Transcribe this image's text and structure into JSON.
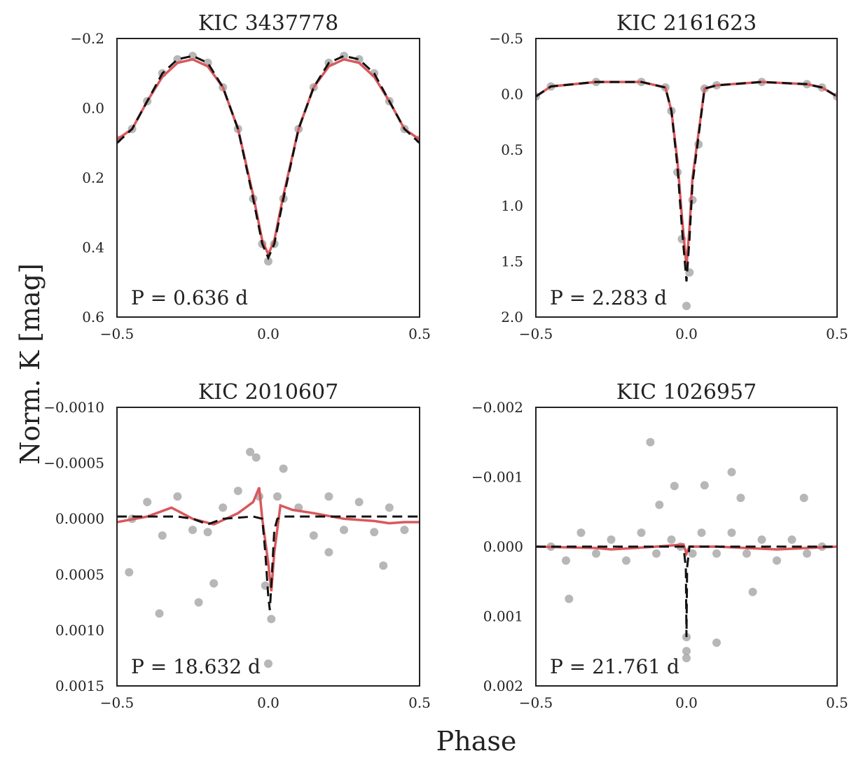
{
  "figure": {
    "xlabel": "Phase",
    "ylabel": "Norm. K [mag]"
  },
  "colors": {
    "points": "#a5a5a5",
    "fit": "#d9585c",
    "model": "#111111",
    "axes": "#222222"
  },
  "chart_data": [
    {
      "type": "line",
      "title": "KIC 3437778",
      "annotation": "P = 0.636 d",
      "xlim": [
        -0.5,
        0.5
      ],
      "ylim": [
        0.6,
        -0.2
      ],
      "xticks": [
        -0.5,
        0.0,
        0.5
      ],
      "xtick_labels": [
        "−0.5",
        "0.0",
        "0.5"
      ],
      "yticks": [
        -0.2,
        0.0,
        0.2,
        0.4,
        0.6
      ],
      "ytick_labels": [
        "−0.2",
        "0.0",
        "0.2",
        "0.4",
        "0.6"
      ],
      "series": [
        {
          "name": "data",
          "style": "scatter",
          "x": [
            -0.5,
            -0.45,
            -0.4,
            -0.35,
            -0.3,
            -0.25,
            -0.2,
            -0.15,
            -0.1,
            -0.05,
            -0.02,
            0.0,
            0.02,
            0.05,
            0.1,
            0.15,
            0.2,
            0.25,
            0.3,
            0.35,
            0.4,
            0.45,
            0.5
          ],
          "y": [
            0.09,
            0.06,
            -0.02,
            -0.1,
            -0.14,
            -0.15,
            -0.13,
            -0.06,
            0.06,
            0.26,
            0.39,
            0.44,
            0.39,
            0.26,
            0.06,
            -0.06,
            -0.13,
            -0.15,
            -0.14,
            -0.1,
            -0.02,
            0.06,
            0.09
          ]
        },
        {
          "name": "fit",
          "style": "line",
          "x": [
            -0.5,
            -0.45,
            -0.4,
            -0.35,
            -0.3,
            -0.25,
            -0.2,
            -0.15,
            -0.1,
            -0.05,
            -0.02,
            0.0,
            0.02,
            0.05,
            0.1,
            0.15,
            0.2,
            0.25,
            0.3,
            0.35,
            0.4,
            0.45,
            0.5
          ],
          "y": [
            0.09,
            0.06,
            -0.02,
            -0.09,
            -0.13,
            -0.14,
            -0.12,
            -0.06,
            0.06,
            0.25,
            0.38,
            0.42,
            0.38,
            0.25,
            0.06,
            -0.06,
            -0.12,
            -0.14,
            -0.13,
            -0.09,
            -0.02,
            0.06,
            0.09
          ]
        },
        {
          "name": "model",
          "style": "dashed",
          "x": [
            -0.5,
            -0.45,
            -0.4,
            -0.35,
            -0.3,
            -0.25,
            -0.2,
            -0.15,
            -0.1,
            -0.05,
            -0.02,
            0.0,
            0.02,
            0.05,
            0.1,
            0.15,
            0.2,
            0.25,
            0.3,
            0.35,
            0.4,
            0.45,
            0.5
          ],
          "y": [
            0.1,
            0.06,
            -0.02,
            -0.1,
            -0.14,
            -0.15,
            -0.13,
            -0.06,
            0.06,
            0.26,
            0.39,
            0.43,
            0.39,
            0.26,
            0.06,
            -0.06,
            -0.13,
            -0.15,
            -0.14,
            -0.1,
            -0.02,
            0.06,
            0.1
          ]
        }
      ]
    },
    {
      "type": "line",
      "title": "KIC 2161623",
      "annotation": "P = 2.283 d",
      "xlim": [
        -0.5,
        0.5
      ],
      "ylim": [
        2.0,
        -0.5
      ],
      "xticks": [
        -0.5,
        0.0,
        0.5
      ],
      "xtick_labels": [
        "−0.5",
        "0.0",
        "0.5"
      ],
      "yticks": [
        -0.5,
        0.0,
        0.5,
        1.0,
        1.5,
        2.0
      ],
      "ytick_labels": [
        "−0.5",
        "0.0",
        "0.5",
        "1.0",
        "1.5",
        "2.0"
      ],
      "series": [
        {
          "name": "data",
          "style": "scatter",
          "x": [
            -0.5,
            -0.45,
            -0.3,
            -0.15,
            -0.07,
            -0.05,
            -0.03,
            -0.015,
            0.0,
            0.01,
            0.02,
            0.04,
            0.06,
            0.1,
            0.25,
            0.4,
            0.45,
            0.5
          ],
          "y": [
            0.02,
            -0.07,
            -0.11,
            -0.11,
            -0.06,
            0.15,
            0.7,
            1.3,
            1.9,
            1.6,
            0.95,
            0.45,
            -0.05,
            -0.08,
            -0.11,
            -0.09,
            -0.06,
            0.02
          ]
        },
        {
          "name": "fit",
          "style": "line",
          "x": [
            -0.5,
            -0.45,
            -0.3,
            -0.15,
            -0.07,
            -0.05,
            -0.03,
            -0.015,
            0.0,
            0.01,
            0.02,
            0.04,
            0.06,
            0.1,
            0.25,
            0.4,
            0.45,
            0.5
          ],
          "y": [
            0.02,
            -0.07,
            -0.11,
            -0.11,
            -0.06,
            0.15,
            0.6,
            1.1,
            1.55,
            1.2,
            0.75,
            0.35,
            -0.05,
            -0.08,
            -0.11,
            -0.09,
            -0.06,
            0.02
          ]
        },
        {
          "name": "model",
          "style": "dashed",
          "x": [
            -0.5,
            -0.45,
            -0.3,
            -0.15,
            -0.07,
            -0.05,
            -0.03,
            -0.015,
            0.0,
            0.01,
            0.02,
            0.04,
            0.06,
            0.1,
            0.25,
            0.4,
            0.45,
            0.5
          ],
          "y": [
            0.02,
            -0.07,
            -0.11,
            -0.11,
            -0.06,
            0.15,
            0.65,
            1.2,
            1.68,
            1.3,
            0.8,
            0.38,
            -0.05,
            -0.08,
            -0.11,
            -0.09,
            -0.06,
            0.02
          ]
        }
      ]
    },
    {
      "type": "line",
      "title": "KIC 2010607",
      "annotation": "P = 18.632 d",
      "xlim": [
        -0.5,
        0.5
      ],
      "ylim": [
        0.0015,
        -0.001
      ],
      "xticks": [
        -0.5,
        0.0,
        0.5
      ],
      "xtick_labels": [
        "−0.5",
        "0.0",
        "0.5"
      ],
      "yticks": [
        -0.001,
        -0.0005,
        0.0,
        0.0005,
        0.001,
        0.0015
      ],
      "ytick_labels": [
        "−0.0010",
        "−0.0005",
        "0.0000",
        "0.0005",
        "0.0010",
        "0.0015"
      ],
      "series": [
        {
          "name": "data",
          "style": "scatter",
          "x": [
            -0.45,
            -0.4,
            -0.35,
            -0.3,
            -0.25,
            -0.2,
            -0.15,
            -0.1,
            -0.06,
            -0.04,
            -0.03,
            -0.01,
            0.0,
            0.01,
            0.03,
            0.05,
            0.1,
            0.15,
            0.2,
            0.25,
            0.3,
            0.35,
            0.4,
            0.45,
            -0.46,
            -0.18,
            -0.23,
            -0.36,
            0.38,
            0.2
          ],
          "y": [
            0.0,
            -0.00015,
            0.00015,
            -0.0002,
            0.0001,
            0.00012,
            -0.0001,
            -0.00025,
            -0.0006,
            -0.00055,
            -0.0002,
            0.0006,
            0.0013,
            0.0009,
            -0.0002,
            -0.00045,
            -0.0001,
            0.00015,
            -0.0002,
            0.0001,
            -0.00015,
            0.00012,
            -0.0001,
            0.0001,
            0.00048,
            0.00058,
            0.00075,
            0.00085,
            0.00042,
            0.0003
          ]
        },
        {
          "name": "fit",
          "style": "line",
          "x": [
            -0.5,
            -0.4,
            -0.32,
            -0.25,
            -0.18,
            -0.1,
            -0.05,
            -0.03,
            -0.02,
            0.0,
            0.01,
            0.02,
            0.04,
            0.08,
            0.15,
            0.25,
            0.35,
            0.4,
            0.45,
            0.5
          ],
          "y": [
            3e-05,
            -2e-05,
            -0.0001,
            0.0,
            5e-05,
            -5e-05,
            -0.00015,
            -0.00028,
            0.0,
            0.0004,
            0.00065,
            0.0003,
            -0.00012,
            -8e-05,
            -5e-05,
            0.0,
            2e-05,
            4e-05,
            3e-05,
            3e-05
          ]
        },
        {
          "name": "model",
          "style": "dashed",
          "x": [
            -0.5,
            -0.3,
            -0.25,
            -0.2,
            -0.15,
            -0.05,
            -0.02,
            -0.01,
            0.0,
            0.005,
            0.01,
            0.02,
            0.03,
            0.05,
            0.2,
            0.5
          ],
          "y": [
            -2e-05,
            -2e-05,
            0.0,
            5e-05,
            0.0,
            -2e-05,
            0.0,
            0.0003,
            0.0007,
            0.00082,
            0.0006,
            0.0001,
            0.0,
            -2e-05,
            -2e-05,
            -2e-05
          ]
        }
      ]
    },
    {
      "type": "line",
      "title": "KIC 1026957",
      "annotation": "P = 21.761 d",
      "xlim": [
        -0.5,
        0.5
      ],
      "ylim": [
        0.002,
        -0.002
      ],
      "xticks": [
        -0.5,
        0.0,
        0.5
      ],
      "xtick_labels": [
        "−0.5",
        "0.0",
        "0.5"
      ],
      "yticks": [
        -0.002,
        -0.001,
        0.0,
        0.001,
        0.002
      ],
      "ytick_labels": [
        "−0.002",
        "−0.001",
        "0.000",
        "0.001",
        "0.002"
      ],
      "series": [
        {
          "name": "data",
          "style": "scatter",
          "x": [
            -0.45,
            -0.4,
            -0.35,
            -0.3,
            -0.25,
            -0.2,
            -0.15,
            -0.1,
            -0.05,
            -0.02,
            0.0,
            0.0,
            0.0,
            0.02,
            0.05,
            0.1,
            0.15,
            0.2,
            0.25,
            0.3,
            0.35,
            0.4,
            0.45,
            -0.12,
            -0.04,
            0.06,
            0.15,
            0.18,
            -0.09,
            0.1,
            -0.39,
            0.22,
            0.39
          ],
          "y": [
            0.0,
            0.0002,
            -0.0002,
            0.0001,
            -0.0001,
            0.0002,
            -0.0002,
            0.0001,
            -0.0001,
            0.0,
            0.0013,
            0.0015,
            0.0016,
            0.0001,
            -0.0002,
            0.0001,
            -0.0002,
            0.0001,
            -0.0001,
            0.0002,
            -0.0001,
            0.0001,
            0.0,
            -0.0015,
            -0.00087,
            -0.00088,
            -0.00107,
            -0.0007,
            -0.0006,
            0.00138,
            0.00075,
            0.00065,
            -0.0007
          ]
        },
        {
          "name": "fit",
          "style": "line",
          "x": [
            -0.5,
            -0.3,
            -0.25,
            -0.1,
            -0.01,
            0.0,
            0.005,
            0.01,
            0.1,
            0.2,
            0.3,
            0.5
          ],
          "y": [
            0.0,
            2e-05,
            4e-05,
            0.0,
            -3e-05,
            0.0001,
            5e-05,
            0.0,
            0.0,
            2e-05,
            4e-05,
            0.0
          ]
        },
        {
          "name": "model",
          "style": "dashed",
          "x": [
            -0.5,
            -0.3,
            -0.1,
            -0.01,
            -0.002,
            0.0,
            0.002,
            0.01,
            0.2,
            0.5
          ],
          "y": [
            0.0,
            0.0,
            0.0,
            0.0,
            0.0003,
            0.0013,
            0.0003,
            0.0,
            0.0,
            0.0
          ]
        }
      ]
    }
  ]
}
